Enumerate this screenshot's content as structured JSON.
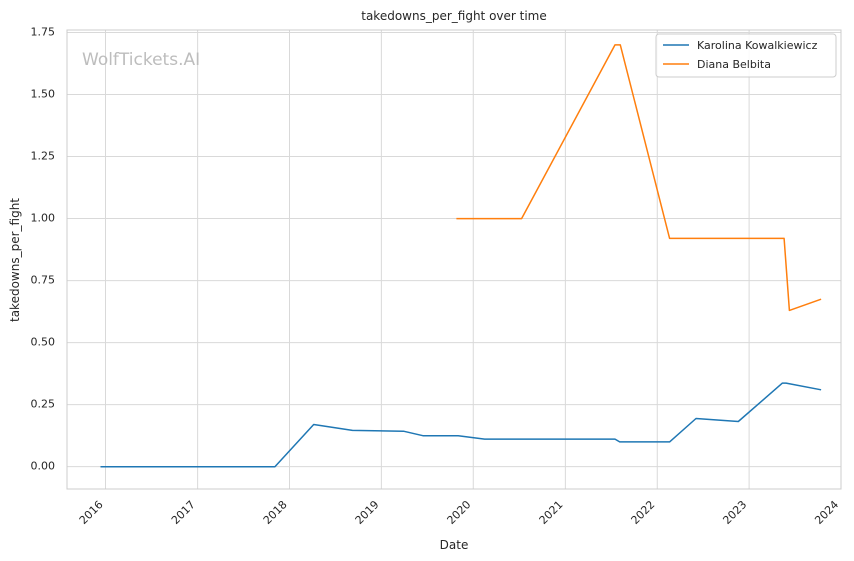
{
  "watermark": "WolfTickets.AI",
  "chart_data": {
    "type": "line",
    "title": "takedowns_per_fight over time",
    "xlabel": "Date",
    "ylabel": "takedowns_per_fight",
    "x_type": "date",
    "xlim": [
      "2015-08-01",
      "2024-01-01"
    ],
    "ylim": [
      -0.09,
      1.76
    ],
    "x_ticks": [
      "2016-01-01",
      "2017-01-01",
      "2018-01-01",
      "2019-01-01",
      "2020-01-01",
      "2021-01-01",
      "2022-01-01",
      "2023-01-01",
      "2024-01-01"
    ],
    "x_tick_labels": [
      "2016",
      "2017",
      "2018",
      "2019",
      "2020",
      "2021",
      "2022",
      "2023",
      "2024"
    ],
    "y_ticks": [
      0.0,
      0.25,
      0.5,
      0.75,
      1.0,
      1.25,
      1.5,
      1.75
    ],
    "y_tick_labels": [
      "0.00",
      "0.25",
      "0.50",
      "0.75",
      "1.00",
      "1.25",
      "1.50",
      "1.75"
    ],
    "grid": true,
    "legend_position": "top-right",
    "series": [
      {
        "name": "Karolina Kowalkiewicz",
        "color": "#1f77b4",
        "points": [
          [
            "2015-12-12",
            0.0
          ],
          [
            "2016-07-30",
            0.0
          ],
          [
            "2017-11-04",
            0.0
          ],
          [
            "2018-04-07",
            0.17
          ],
          [
            "2018-09-08",
            0.146
          ],
          [
            "2019-03-30",
            0.143
          ],
          [
            "2019-06-15",
            0.125
          ],
          [
            "2019-11-02",
            0.125
          ],
          [
            "2020-02-15",
            0.111
          ],
          [
            "2021-07-17",
            0.111
          ],
          [
            "2021-08-05",
            0.1
          ],
          [
            "2022-02-19",
            0.1
          ],
          [
            "2022-06-04",
            0.194
          ],
          [
            "2022-11-19",
            0.182
          ],
          [
            "2023-05-13",
            0.337
          ],
          [
            "2023-05-28",
            0.337
          ],
          [
            "2023-10-14",
            0.31
          ]
        ]
      },
      {
        "name": "Diana Belbita",
        "color": "#ff7f0e",
        "points": [
          [
            "2019-10-26",
            1.0
          ],
          [
            "2020-07-11",
            1.0
          ],
          [
            "2021-07-17",
            1.7
          ],
          [
            "2021-08-07",
            1.7
          ],
          [
            "2022-02-19",
            0.92
          ],
          [
            "2023-05-20",
            0.92
          ],
          [
            "2023-06-10",
            0.63
          ],
          [
            "2023-10-14",
            0.675
          ]
        ]
      }
    ]
  }
}
